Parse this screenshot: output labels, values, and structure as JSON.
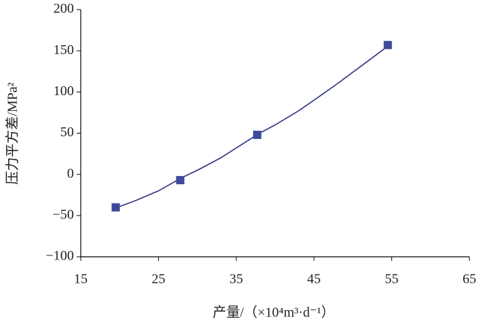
{
  "chart_data": {
    "type": "scatter",
    "x_label": "产量/（×10⁴m³·d⁻¹）",
    "y_label": "压力平方差/MPa²",
    "xlim": [
      15,
      65
    ],
    "xticks": [
      15,
      25,
      35,
      45,
      55,
      65
    ],
    "ylim": [
      -100,
      200
    ],
    "yticks": [
      {
        "value": -100,
        "label": "−100"
      },
      {
        "value": -50,
        "label": "−50"
      },
      0,
      50,
      100,
      150,
      200
    ],
    "series": [
      {
        "kind": "line",
        "color": "#3b3f8f",
        "x": [
          19.7,
          22,
          25,
          28,
          30,
          33,
          35,
          38,
          40,
          43,
          45,
          48,
          50,
          52,
          54,
          54.5
        ],
        "values": [
          -40,
          -32,
          -20,
          -4,
          5,
          20,
          32,
          50,
          60,
          77,
          90,
          110,
          124,
          138,
          152,
          157
        ]
      },
      {
        "kind": "marker",
        "color": "#3d4b9c",
        "x": [
          19.5,
          27.8,
          37.7,
          54.5
        ],
        "values": [
          -40,
          -7,
          48,
          157
        ]
      }
    ]
  }
}
